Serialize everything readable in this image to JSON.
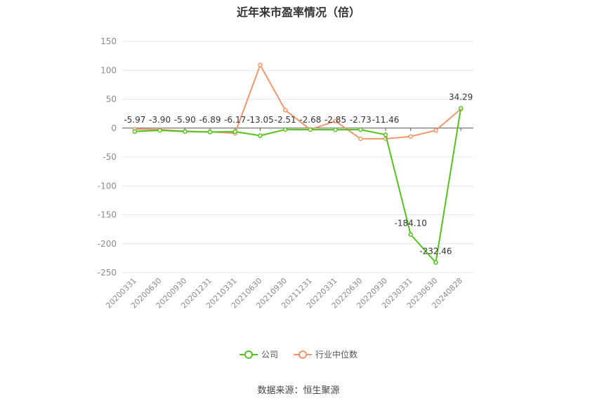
{
  "chart_data": {
    "type": "line",
    "title": "近年来市盈率情况（倍）",
    "categories": [
      "20200331",
      "20200630",
      "20200930",
      "20201231",
      "20210331",
      "20210630",
      "20210930",
      "20211231",
      "20220331",
      "20220630",
      "20220930",
      "20230331",
      "20230630",
      "20240828"
    ],
    "series": [
      {
        "name": "公司",
        "color": "#52c41a",
        "values": [
          -5.97,
          -3.9,
          -5.9,
          -6.89,
          -6.17,
          -13.05,
          -2.51,
          -2.68,
          -2.85,
          -2.73,
          -11.46,
          -184.1,
          -232.46,
          34.29
        ],
        "labels": [
          "-5.97",
          "-3.90",
          "-5.90",
          "-6.89",
          "-6.17",
          "-13.05",
          "-2.51",
          "-2.68",
          "-2.85",
          "-2.73",
          "-11.46",
          "-184.10",
          "-232.46",
          "34.29"
        ]
      },
      {
        "name": "行业中位数",
        "color": "#f5956a",
        "values": [
          -2,
          -2.5,
          -5.5,
          -6.5,
          -9,
          109,
          31,
          -2.5,
          12,
          -18.5,
          -18.5,
          -14.5,
          -4,
          33
        ]
      }
    ],
    "yticks": [
      150,
      100,
      50,
      0,
      -50,
      -100,
      -150,
      -200,
      -250
    ],
    "ylim": [
      -250,
      150
    ],
    "grid": true,
    "legend_position": "bottom",
    "source": "数据来源：恒生聚源"
  }
}
